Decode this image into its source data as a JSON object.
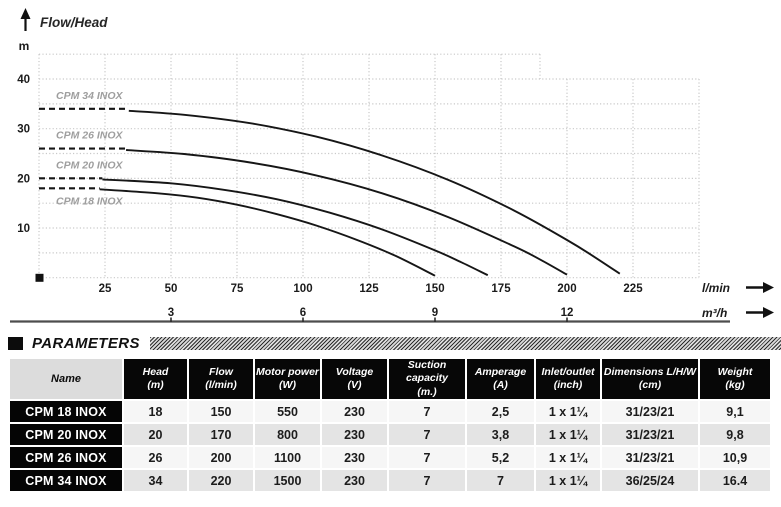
{
  "chart_data": {
    "type": "line",
    "title": "Flow/Head",
    "ylabel": "m",
    "xlabel_primary": "l/min",
    "xlabel_secondary": "m³/h",
    "xlim_lmin": [
      0,
      250
    ],
    "ylim_m": [
      0,
      45
    ],
    "grid": true,
    "y_ticks": [
      10,
      20,
      30,
      40
    ],
    "x_ticks_lmin": [
      25,
      50,
      75,
      100,
      125,
      150,
      175,
      200,
      225
    ],
    "x_ticks_m3h": [
      3,
      6,
      9,
      12
    ],
    "series": [
      {
        "name": "CPM 18 INOX",
        "shutoff_head_m": 18,
        "max_flow_lmin": 150,
        "dash_to_lmin": 23,
        "label_side": "below",
        "points": [
          [
            23,
            17.8
          ],
          [
            45,
            17.0
          ],
          [
            60,
            16.1
          ],
          [
            75,
            14.7
          ],
          [
            90,
            12.8
          ],
          [
            105,
            10.5
          ],
          [
            120,
            7.7
          ],
          [
            135,
            4.4
          ],
          [
            150,
            0.4
          ]
        ]
      },
      {
        "name": "CPM 20 INOX",
        "shutoff_head_m": 20,
        "max_flow_lmin": 170,
        "dash_to_lmin": 24,
        "label_side": "above",
        "points": [
          [
            24,
            19.8
          ],
          [
            50,
            19.0
          ],
          [
            70,
            17.7
          ],
          [
            90,
            15.8
          ],
          [
            110,
            13.1
          ],
          [
            130,
            9.7
          ],
          [
            150,
            5.5
          ],
          [
            160,
            3.1
          ],
          [
            170,
            0.5
          ]
        ]
      },
      {
        "name": "CPM 26 INOX",
        "shutoff_head_m": 26,
        "max_flow_lmin": 200,
        "dash_to_lmin": 33,
        "label_side": "above",
        "points": [
          [
            33,
            25.7
          ],
          [
            55,
            24.9
          ],
          [
            80,
            23.2
          ],
          [
            105,
            20.6
          ],
          [
            130,
            17.0
          ],
          [
            155,
            12.2
          ],
          [
            180,
            6.3
          ],
          [
            190,
            3.6
          ],
          [
            200,
            0.6
          ]
        ]
      },
      {
        "name": "CPM 34 INOX",
        "shutoff_head_m": 34,
        "max_flow_lmin": 220,
        "dash_to_lmin": 34,
        "label_side": "above",
        "points": [
          [
            34,
            33.6
          ],
          [
            55,
            32.8
          ],
          [
            80,
            31.1
          ],
          [
            105,
            28.4
          ],
          [
            130,
            24.6
          ],
          [
            155,
            19.7
          ],
          [
            180,
            13.5
          ],
          [
            200,
            7.6
          ],
          [
            210,
            4.3
          ],
          [
            220,
            0.8
          ]
        ]
      }
    ]
  },
  "parameters": {
    "title": "PARAMETERS",
    "columns": [
      {
        "label": "Name",
        "unit": ""
      },
      {
        "label": "Head",
        "unit": "(m)"
      },
      {
        "label": "Flow",
        "unit": "(l/min)"
      },
      {
        "label": "Motor power",
        "unit": "(W)"
      },
      {
        "label": "Voltage",
        "unit": "(V)"
      },
      {
        "label": "Suction capacity",
        "unit": "(m.)"
      },
      {
        "label": "Amperage",
        "unit": "(A)"
      },
      {
        "label": "Inlet/outlet",
        "unit": "(inch)"
      },
      {
        "label": "Dimensions L/H/W",
        "unit": "(cm)"
      },
      {
        "label": "Weight",
        "unit": "(kg)"
      }
    ],
    "rows": [
      {
        "name": "CPM 18 INOX",
        "values": [
          "18",
          "150",
          "550",
          "230",
          "7",
          "2,5",
          "1 x 1¼",
          "31/23/21",
          "9,1"
        ]
      },
      {
        "name": "CPM 20 INOX",
        "values": [
          "20",
          "170",
          "800",
          "230",
          "7",
          "3,8",
          "1 x 1¼",
          "31/23/21",
          "9,8"
        ]
      },
      {
        "name": "CPM 26 INOX",
        "values": [
          "26",
          "200",
          "1100",
          "230",
          "7",
          "5,2",
          "1 x 1¼",
          "31/23/21",
          "10,9"
        ]
      },
      {
        "name": "CPM 34 INOX",
        "values": [
          "34",
          "220",
          "1500",
          "230",
          "7",
          "7",
          "1 x 1¼",
          "36/25/24",
          "16.4"
        ]
      }
    ]
  }
}
